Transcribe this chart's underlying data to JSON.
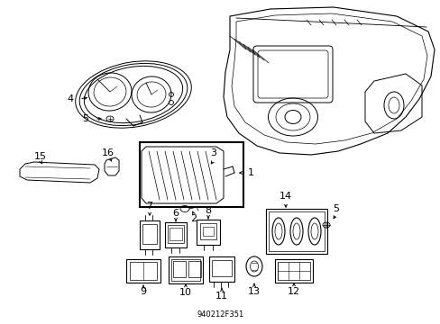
{
  "background_color": "#ffffff",
  "line_color": "#000000",
  "fig_width": 4.89,
  "fig_height": 3.6,
  "dpi": 100,
  "footnote": "940212F351"
}
